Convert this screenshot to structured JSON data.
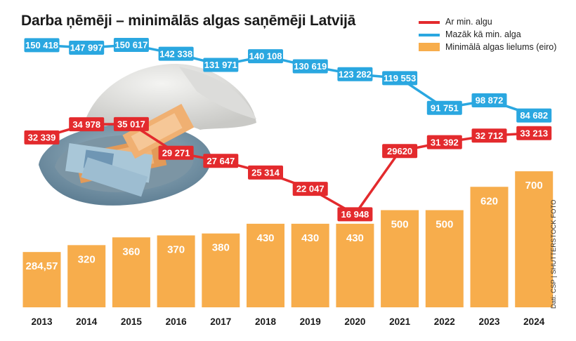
{
  "title": "Darba ņēmēji – minimālās algas saņēmēji Latvijā",
  "source": "Dati: CSP | SHUTTERSTOCK FOTO",
  "colors": {
    "red": "#e32a2d",
    "blue": "#2aa7e0",
    "orange": "#f7ad4c",
    "photo": "cap-with-euro-banknotes"
  },
  "chart_data": {
    "type": "bar",
    "categories": [
      "2013",
      "2014",
      "2015",
      "2016",
      "2017",
      "2018",
      "2019",
      "2020",
      "2021",
      "2022",
      "2023",
      "2024"
    ],
    "series": [
      {
        "name": "Minimālā algas lielums (eiro)",
        "type": "bar",
        "values": [
          284.57,
          320,
          360,
          370,
          380,
          430,
          430,
          430,
          500,
          500,
          620,
          700
        ],
        "labels": [
          "284,57",
          "320",
          "360",
          "370",
          "380",
          "430",
          "430",
          "430",
          "500",
          "500",
          "620",
          "700"
        ]
      },
      {
        "name": "Ar min. algu",
        "type": "line",
        "values": [
          32339,
          34978,
          35017,
          29271,
          27647,
          25314,
          22047,
          16948,
          29620,
          31392,
          32712,
          33213
        ],
        "labels": [
          "32 339",
          "34 978",
          "35 017",
          "29 271",
          "27 647",
          "25 314",
          "22 047",
          "16 948",
          "29620",
          "31 392",
          "32 712",
          "33 213"
        ]
      },
      {
        "name": "Mazāk kā min. alga",
        "type": "line",
        "values": [
          150418,
          147997,
          150617,
          142338,
          131971,
          140108,
          130619,
          123282,
          119553,
          91751,
          98872,
          84682
        ],
        "labels": [
          "150 418",
          "147 997",
          "150 617",
          "142 338",
          "131 971",
          "140 108",
          "130 619",
          "123 282",
          "119 553",
          "91 751",
          "98 872",
          "84 682"
        ]
      }
    ],
    "legend_position": "top-right",
    "grid": false
  }
}
